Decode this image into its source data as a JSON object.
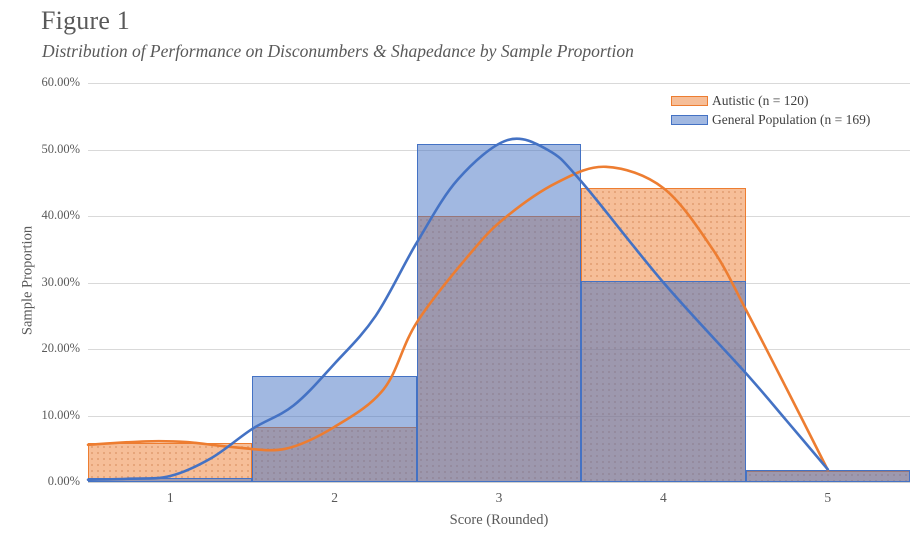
{
  "figure": {
    "title": "Figure 1",
    "subtitle": "Distribution of Performance on Disconumbers & Shapedance by Sample Proportion"
  },
  "chart_data": {
    "type": "bar",
    "subtype": "overlaid-histogram-with-density-curves",
    "xlabel": "Score (Rounded)",
    "ylabel": "Sample Proportion",
    "categories": [
      "1",
      "2",
      "3",
      "4",
      "5"
    ],
    "ylim": [
      0,
      60
    ],
    "ytick_labels": [
      "0.00%",
      "10.00%",
      "20.00%",
      "30.00%",
      "40.00%",
      "50.00%",
      "60.00%"
    ],
    "ytick_values": [
      0,
      10,
      20,
      30,
      40,
      50,
      60
    ],
    "grid": "horizontal",
    "legend_position": "top-right",
    "series": [
      {
        "name": "Autistic (n = 120)",
        "color": "#ED7D31",
        "fill": "rgba(237,125,49,0.50)",
        "pattern": "dotted",
        "values_pct": [
          5.8,
          8.3,
          40.0,
          44.2,
          1.7
        ],
        "curve_points": [
          [
            0.5,
            5.6
          ],
          [
            0.85,
            6.1
          ],
          [
            1.1,
            6.0
          ],
          [
            1.4,
            5.2
          ],
          [
            1.7,
            5.0
          ],
          [
            2.0,
            8.3
          ],
          [
            2.3,
            14.0
          ],
          [
            2.5,
            24.0
          ],
          [
            2.84,
            34.8
          ],
          [
            3.05,
            40.0
          ],
          [
            3.35,
            45.0
          ],
          [
            3.65,
            47.4
          ],
          [
            4.0,
            44.2
          ],
          [
            4.3,
            35.0
          ],
          [
            4.5,
            26.0
          ],
          [
            4.75,
            14.0
          ],
          [
            5.0,
            1.8
          ]
        ]
      },
      {
        "name": "General Population (n = 169)",
        "color": "#4472C4",
        "fill": "rgba(68,114,196,0.50)",
        "pattern": "solid",
        "values_pct": [
          0.6,
          16.0,
          50.9,
          30.2,
          1.8
        ],
        "curve_points": [
          [
            0.5,
            0.35
          ],
          [
            0.75,
            0.5
          ],
          [
            1.0,
            0.9
          ],
          [
            1.25,
            3.6
          ],
          [
            1.5,
            8.0
          ],
          [
            1.75,
            11.5
          ],
          [
            2.0,
            17.8
          ],
          [
            2.25,
            25.0
          ],
          [
            2.5,
            36.0
          ],
          [
            2.75,
            45.5
          ],
          [
            3.05,
            51.4
          ],
          [
            3.3,
            49.9
          ],
          [
            3.5,
            45.2
          ],
          [
            4.0,
            30.0
          ],
          [
            4.5,
            16.4
          ],
          [
            4.75,
            9.2
          ],
          [
            5.0,
            1.9
          ]
        ]
      }
    ],
    "colors": {
      "gridline": "#d9d9d9",
      "axis_line": "#cfcfcf",
      "text": "#595959",
      "legend_text": "#3f3f3f"
    }
  },
  "legend": {
    "items": [
      {
        "label": "Autistic (n = 120)"
      },
      {
        "label": "General Population (n = 169)"
      }
    ]
  }
}
